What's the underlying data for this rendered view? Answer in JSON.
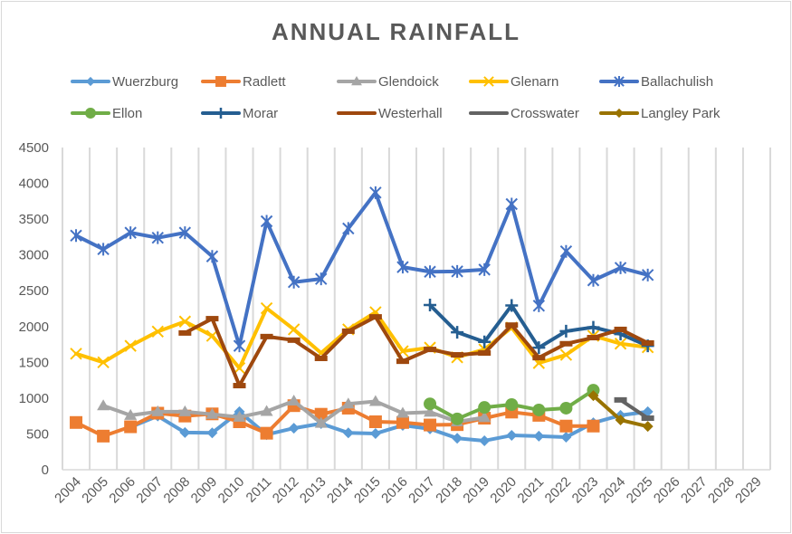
{
  "chart_data": {
    "type": "line",
    "title": "ANNUAL RAINFALL",
    "xlabel": "",
    "ylabel": "",
    "ylim": [
      0,
      4500
    ],
    "yticks": [
      0,
      500,
      1000,
      1500,
      2000,
      2500,
      3000,
      3500,
      4000,
      4500
    ],
    "ytick_labels": [
      "0",
      "500",
      "1000",
      "1500",
      "2000",
      "2500",
      "3000",
      "3500",
      "4000",
      "4500"
    ],
    "grid": "vertical",
    "legend_position": "top",
    "categories": [
      "2004",
      "2005",
      "2006",
      "2007",
      "2008",
      "2009",
      "2010",
      "2011",
      "2012",
      "2013",
      "2014",
      "2015",
      "2016",
      "2017",
      "2018",
      "2019",
      "2020",
      "2021",
      "2022",
      "2023",
      "2024",
      "2025",
      "2026",
      "2027",
      "2028",
      "2029"
    ],
    "series": [
      {
        "name": "Wuerzburg",
        "color": "#5b9bd5",
        "marker": "diamond",
        "values": [
          null,
          null,
          595,
          750,
          520,
          515,
          810,
          490,
          580,
          645,
          515,
          505,
          620,
          570,
          440,
          405,
          480,
          470,
          455,
          655,
          760,
          810,
          null,
          null,
          null,
          null
        ]
      },
      {
        "name": "Radlett",
        "color": "#ed7d31",
        "marker": "square",
        "values": [
          660,
          470,
          600,
          790,
          750,
          780,
          670,
          510,
          895,
          775,
          860,
          670,
          660,
          625,
          630,
          720,
          805,
          760,
          610,
          610,
          null,
          null,
          null,
          null,
          null,
          null
        ]
      },
      {
        "name": "Glendoick",
        "color": "#a5a5a5",
        "marker": "triangle",
        "values": [
          null,
          895,
          760,
          810,
          810,
          775,
          735,
          815,
          960,
          650,
          920,
          955,
          790,
          805,
          670,
          730,
          null,
          null,
          null,
          null,
          null,
          null,
          null,
          null,
          null,
          null
        ]
      },
      {
        "name": "Glenarn",
        "color": "#ffc000",
        "marker": "x",
        "values": [
          1620,
          1500,
          1730,
          1930,
          2070,
          1870,
          1420,
          2255,
          1960,
          1630,
          1960,
          2200,
          1655,
          1705,
          1570,
          1680,
          1985,
          1490,
          1605,
          1870,
          1760,
          1710,
          null,
          null,
          null,
          null
        ]
      },
      {
        "name": "Ballachulish",
        "color": "#4472c4",
        "marker": "star",
        "values": [
          3270,
          3080,
          3310,
          3240,
          3310,
          2980,
          1730,
          3470,
          2620,
          2665,
          3370,
          3870,
          2830,
          2765,
          2770,
          2795,
          3710,
          2290,
          3050,
          2645,
          2820,
          2720,
          null,
          null,
          null,
          null
        ]
      },
      {
        "name": "Ellon",
        "color": "#70ad47",
        "marker": "circle",
        "values": [
          null,
          null,
          null,
          null,
          null,
          null,
          null,
          null,
          null,
          null,
          null,
          null,
          null,
          920,
          710,
          870,
          910,
          835,
          860,
          1110,
          null,
          null,
          null,
          null,
          null,
          null
        ]
      },
      {
        "name": "Morar",
        "color": "#255e91",
        "marker": "plus",
        "values": [
          null,
          null,
          null,
          null,
          null,
          null,
          null,
          null,
          null,
          null,
          null,
          null,
          null,
          2300,
          1920,
          1785,
          2295,
          1705,
          1935,
          1990,
          1895,
          1730,
          null,
          null,
          null,
          null
        ]
      },
      {
        "name": "Westerhall",
        "color": "#9e480e",
        "marker": "dash",
        "values": [
          null,
          null,
          null,
          null,
          1910,
          2110,
          1175,
          1860,
          1810,
          1555,
          1935,
          2135,
          1515,
          1680,
          1605,
          1630,
          2020,
          1565,
          1760,
          1845,
          1960,
          1770,
          null,
          null,
          null,
          null
        ]
      },
      {
        "name": "Crosswater",
        "color": "#636363",
        "marker": "dash",
        "values": [
          null,
          null,
          null,
          null,
          null,
          null,
          null,
          null,
          null,
          null,
          null,
          null,
          null,
          null,
          null,
          null,
          null,
          null,
          null,
          null,
          975,
          720,
          null,
          null,
          null,
          null
        ]
      },
      {
        "name": "Langley Park",
        "color": "#997300",
        "marker": "diamond",
        "values": [
          null,
          null,
          null,
          null,
          null,
          null,
          null,
          null,
          null,
          null,
          null,
          null,
          null,
          null,
          null,
          null,
          null,
          null,
          null,
          1035,
          695,
          605,
          null,
          null,
          null,
          null
        ]
      }
    ]
  }
}
